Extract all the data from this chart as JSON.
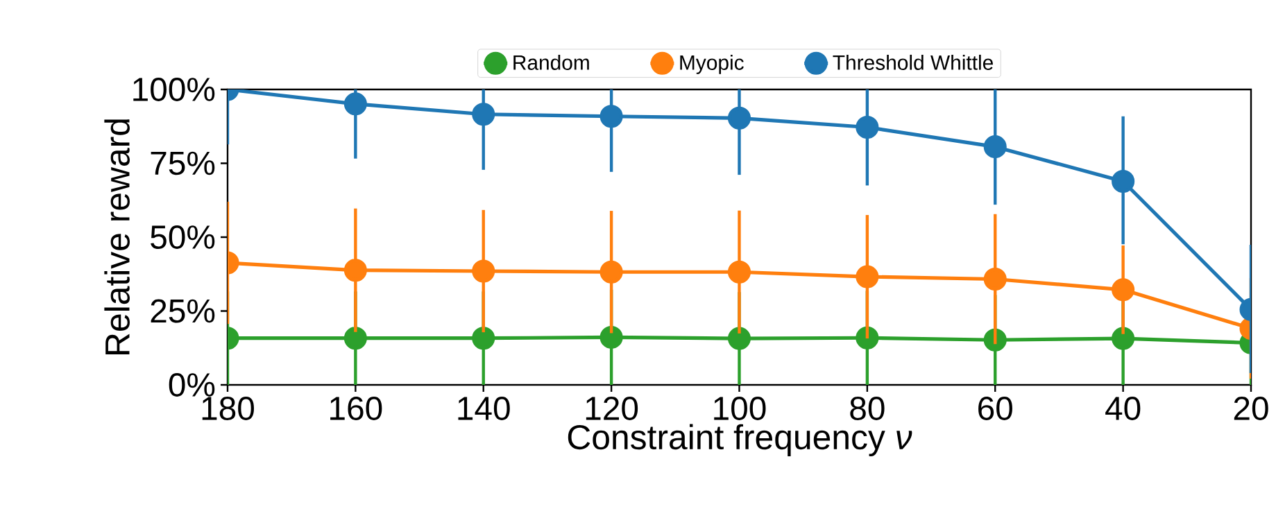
{
  "chart_data": {
    "type": "line",
    "xlabel": "Constraint frequency *ν*",
    "ylabel": "Relative reward",
    "x": [
      180,
      160,
      140,
      120,
      100,
      80,
      60,
      40,
      20
    ],
    "series": [
      {
        "name": "Random",
        "color": "#2ca02c",
        "values": [
          15.8,
          15.8,
          15.8,
          16.1,
          15.7,
          15.9,
          15.2,
          15.7,
          14.2
        ],
        "errors": [
          15.8,
          15.8,
          15.8,
          16.1,
          15.7,
          15.9,
          15.2,
          15.7,
          14.2
        ]
      },
      {
        "name": "Myopic",
        "color": "#ff7f0e",
        "values": [
          41.3,
          38.8,
          38.5,
          38.2,
          38.2,
          36.6,
          35.8,
          32.2,
          19.1
        ],
        "errors": [
          20.7,
          20.9,
          20.7,
          20.7,
          20.8,
          20.9,
          22,
          15,
          17
        ]
      },
      {
        "name": "Threshold Whittle",
        "color": "#1f77b4",
        "values": [
          100,
          95.1,
          91.6,
          90.9,
          90.3,
          87.2,
          80.6,
          68.9,
          25.5
        ],
        "errors": [
          [
            81.4,
            100
          ],
          [
            76.6,
            100
          ],
          [
            72.8,
            100
          ],
          [
            72.1,
            100
          ],
          [
            71.1,
            100
          ],
          [
            67.5,
            100
          ],
          [
            61,
            100
          ],
          [
            47.6,
            90.9
          ],
          [
            4,
            47.4
          ]
        ]
      }
    ],
    "xlim": [
      180,
      20
    ],
    "xticks": [
      180,
      160,
      140,
      120,
      100,
      80,
      60,
      40,
      20
    ],
    "ylim": [
      0,
      100
    ],
    "yticks": [
      {
        "value": 0,
        "label": "0%"
      },
      {
        "value": 25,
        "label": "25%"
      },
      {
        "value": 50,
        "label": "50%"
      },
      {
        "value": 75,
        "label": "75%"
      },
      {
        "value": 100,
        "label": "100%"
      }
    ],
    "marker": "circle",
    "legend": "top",
    "grid": false
  }
}
